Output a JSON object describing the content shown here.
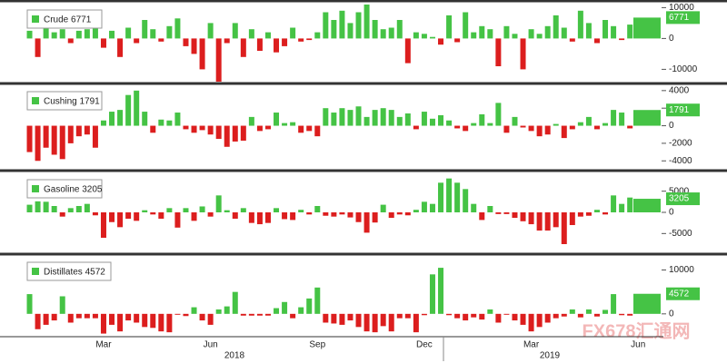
{
  "chart_data": [
    {
      "type": "bar",
      "series": [
        {
          "name": "Crude",
          "values": [
            2500,
            -6000,
            4000,
            2000,
            3000,
            -1500,
            2500,
            3000,
            9000,
            -3000,
            2500,
            -6000,
            3500,
            -1500,
            6000,
            3000,
            -1000,
            4000,
            6500,
            -2500,
            -5000,
            -10000,
            5000,
            -14000,
            -1500,
            5000,
            -6000,
            3000,
            -4000,
            2000,
            -4500,
            -2500,
            3500,
            -1000,
            -500,
            2000,
            8500,
            6000,
            9000,
            5000,
            8500,
            11000,
            6000,
            3000,
            3500,
            6000,
            -8000,
            2000,
            1500,
            500,
            -2000,
            7500,
            -1200,
            8500,
            2000,
            4000,
            3000,
            -9000,
            4000,
            1500,
            -10000,
            3000,
            1500,
            4000,
            7500,
            3500,
            -1000,
            9000,
            5000,
            -1500,
            6000,
            4000,
            -500,
            4500,
            6771
          ]
        }
      ],
      "colors": {
        "positive": "#45c345",
        "negative": "#dc1e1e"
      },
      "ylim": [
        -14000,
        11000
      ],
      "yticks": [
        -10000,
        0,
        10000
      ]
    },
    {
      "type": "bar",
      "series": [
        {
          "name": "Cushing",
          "values": [
            -3000,
            -4000,
            -2500,
            -3300,
            -3800,
            -2000,
            -1200,
            -1000,
            -2500,
            600,
            1600,
            1800,
            3500,
            4000,
            1600,
            -800,
            700,
            600,
            1500,
            -400,
            -800,
            -500,
            -1000,
            -1500,
            -2400,
            -1800,
            -1700,
            1000,
            -600,
            -400,
            1500,
            300,
            400,
            -800,
            -600,
            -1200,
            2000,
            1500,
            2000,
            1800,
            2200,
            1000,
            1800,
            2000,
            1800,
            1000,
            1400,
            -400,
            1600,
            800,
            1200,
            600,
            -300,
            -600,
            300,
            1300,
            300,
            2600,
            -800,
            1000,
            -200,
            -600,
            -1200,
            -1000,
            200,
            -1400,
            -400,
            400,
            1000,
            -400,
            300,
            1800,
            1500,
            -300,
            1791
          ]
        }
      ],
      "colors": {
        "positive": "#45c345",
        "negative": "#dc1e1e"
      },
      "ylim": [
        -4800,
        4500
      ],
      "yticks": [
        -4000,
        -2000,
        0,
        2000,
        4000
      ]
    },
    {
      "type": "bar",
      "series": [
        {
          "name": "Gasoline",
          "values": [
            1800,
            2600,
            2500,
            1500,
            -1000,
            1000,
            1500,
            2000,
            -700,
            -6000,
            -2300,
            -3500,
            -1500,
            -2000,
            500,
            -500,
            -1500,
            1000,
            -3600,
            1000,
            -2000,
            1400,
            -1000,
            4000,
            500,
            -1500,
            1000,
            -2500,
            -2800,
            -2500,
            1000,
            -1600,
            -1800,
            600,
            -500,
            1500,
            -800,
            -1000,
            -500,
            -1200,
            -2300,
            -4800,
            -2400,
            1800,
            -1300,
            -500,
            -700,
            600,
            2500,
            2000,
            7000,
            8000,
            7000,
            5500,
            2000,
            -1800,
            1500,
            -400,
            -400,
            -1300,
            -2100,
            -2800,
            -4300,
            -4300,
            -3500,
            -7500,
            -3000,
            -1000,
            -800,
            600,
            -500,
            4000,
            2000,
            3500,
            3205
          ]
        }
      ],
      "colors": {
        "positive": "#45c345",
        "negative": "#dc1e1e"
      },
      "ylim": [
        -9000,
        9000
      ],
      "yticks": [
        -5000,
        0,
        5000
      ]
    },
    {
      "type": "bar",
      "series": [
        {
          "name": "Distillates",
          "values": [
            4500,
            -3500,
            -2500,
            -1500,
            4000,
            -2000,
            -1000,
            -1000,
            -1000,
            -4500,
            -2500,
            -4000,
            -1500,
            -2000,
            -3000,
            -3200,
            -4000,
            -4200,
            -200,
            -500,
            1500,
            -1500,
            -2500,
            1000,
            1700,
            5000,
            -400,
            -400,
            -400,
            -400,
            1300,
            2700,
            -1000,
            1500,
            3500,
            6000,
            -2000,
            -2200,
            -2500,
            -1500,
            -3000,
            -4000,
            -4200,
            -2800,
            -4000,
            -1000,
            -1000,
            -4200,
            -300,
            9000,
            10500,
            -300,
            -1000,
            -1500,
            -800,
            -1300,
            1000,
            -2000,
            -200,
            -1500,
            -2500,
            -4000,
            -3000,
            -2000,
            -1000,
            -600,
            1000,
            -800,
            1000,
            -600,
            900,
            4500,
            -300,
            -400,
            4572
          ]
        }
      ],
      "colors": {
        "positive": "#45c345",
        "negative": "#dc1e1e"
      },
      "ylim": [
        -5000,
        13000
      ],
      "yticks": [
        0,
        10000
      ],
      "categories": [
        null,
        null,
        null,
        null,
        null,
        null,
        null,
        null,
        null,
        "Mar",
        null,
        null,
        null,
        null,
        null,
        null,
        null,
        null,
        null,
        null,
        null,
        null,
        "Jun",
        null,
        null,
        null,
        null,
        null,
        null,
        null,
        null,
        null,
        null,
        null,
        null,
        "Sep",
        null,
        null,
        null,
        null,
        null,
        null,
        null,
        null,
        null,
        null,
        null,
        null,
        "Dec",
        null,
        null,
        null,
        null,
        null,
        null,
        null,
        null,
        null,
        null,
        null,
        null,
        "Mar",
        null,
        null,
        null,
        null,
        null,
        null,
        null,
        null,
        null,
        null,
        null,
        null,
        "Jun"
      ],
      "x_groups": [
        "2018",
        "2019"
      ]
    }
  ],
  "watermark": "FX678汇通网"
}
